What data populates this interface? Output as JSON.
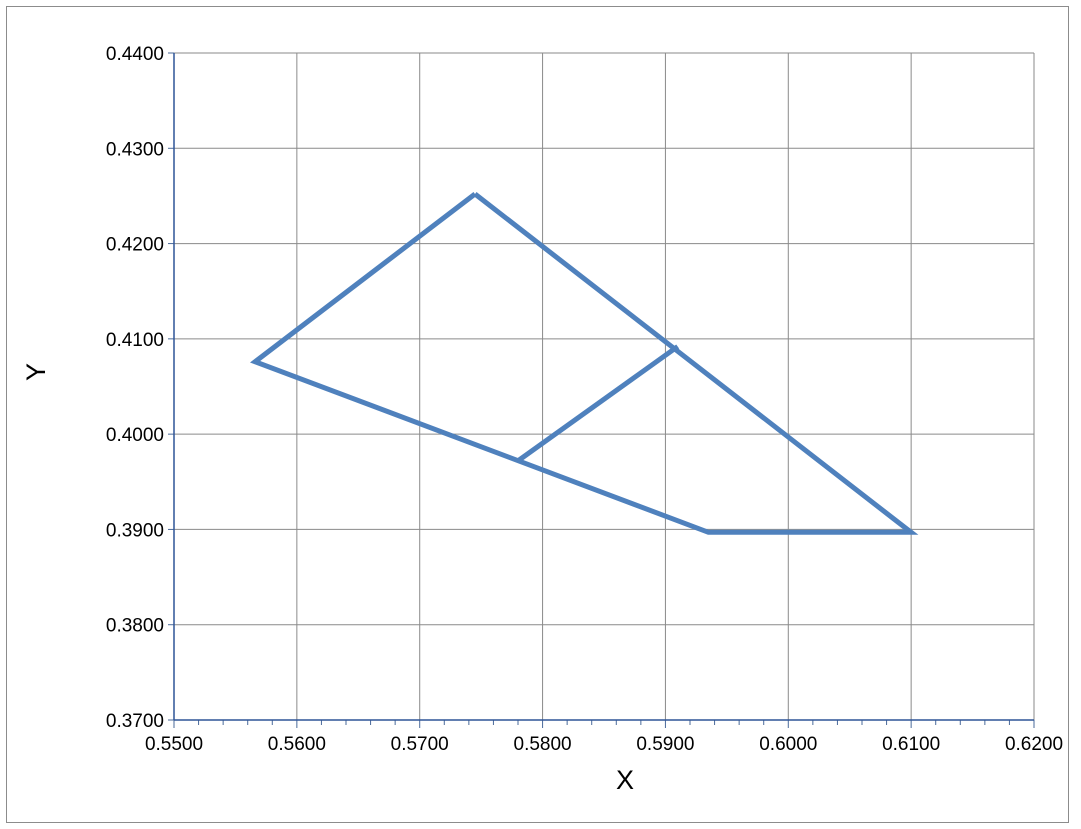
{
  "chart_data": {
    "type": "scatter",
    "title": "",
    "xlabel": "X",
    "ylabel": "Y",
    "xlim": [
      0.55,
      0.62
    ],
    "ylim": [
      0.37,
      0.44
    ],
    "xticks": [
      "0.5500",
      "0.5600",
      "0.5700",
      "0.5800",
      "0.5900",
      "0.6000",
      "0.6100",
      "0.6200"
    ],
    "yticks": [
      "0.3700",
      "0.3800",
      "0.3900",
      "0.4000",
      "0.4100",
      "0.4200",
      "0.4300",
      "0.4400"
    ],
    "grid": true,
    "legend": "none",
    "line_color": "#4f81bd",
    "series": [
      {
        "points": [
          {
            "x": 0.5745,
            "y": 0.4252
          },
          {
            "x": 0.5566,
            "y": 0.4076
          },
          {
            "x": 0.5935,
            "y": 0.3897
          },
          {
            "x": 0.61,
            "y": 0.3897
          },
          {
            "x": 0.5745,
            "y": 0.4252
          }
        ]
      },
      {
        "points": [
          {
            "x": 0.578,
            "y": 0.3972
          },
          {
            "x": 0.591,
            "y": 0.4092
          }
        ]
      }
    ]
  }
}
